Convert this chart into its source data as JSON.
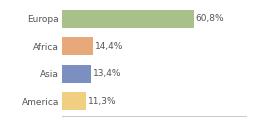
{
  "categories": [
    "Europa",
    "Africa",
    "Asia",
    "America"
  ],
  "values": [
    60.8,
    14.4,
    13.4,
    11.3
  ],
  "labels": [
    "60,8%",
    "14,4%",
    "13,4%",
    "11,3%"
  ],
  "bar_colors": [
    "#a8c08a",
    "#e8a97a",
    "#7b8fc0",
    "#f0d080"
  ],
  "xlim": [
    0,
    85
  ],
  "background_color": "#ffffff",
  "bar_height": 0.65,
  "label_fontsize": 6.5,
  "tick_fontsize": 6.5,
  "grid_color": "#dddddd",
  "spine_color": "#cccccc"
}
